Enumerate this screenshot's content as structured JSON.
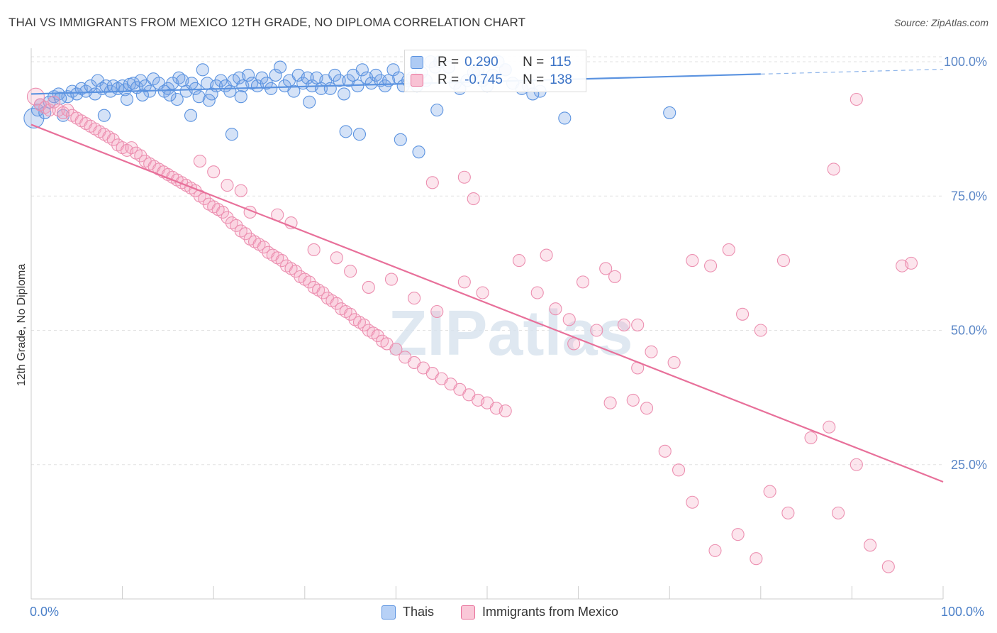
{
  "header": {
    "title": "THAI VS IMMIGRANTS FROM MEXICO 12TH GRADE, NO DIPLOMA CORRELATION CHART",
    "source": "Source: ZipAtlas.com"
  },
  "watermark": "ZIPatlas",
  "legend_top": {
    "rows": [
      {
        "r_label": "R =",
        "r_value": "0.290",
        "n_label": "N =",
        "n_value": "115",
        "color": "#8ab4f0"
      },
      {
        "r_label": "R =",
        "r_value": "-0.745",
        "n_label": "N =",
        "n_value": "138",
        "color": "#f5a8c4"
      }
    ]
  },
  "legend_bottom": [
    {
      "label": "Thais",
      "color": "#a8c8f5"
    },
    {
      "label": "Immigrants from Mexico",
      "color": "#f8bcd0"
    }
  ],
  "chart_data": {
    "type": "scatter",
    "title": "THAI VS IMMIGRANTS FROM MEXICO 12TH GRADE, NO DIPLOMA CORRELATION CHART",
    "xlabel": "",
    "ylabel": "12th Grade, No Diploma",
    "xlim": [
      0,
      100
    ],
    "ylim": [
      0,
      100
    ],
    "x_tick_labels": [
      "0.0%",
      "100.0%"
    ],
    "y_tick_labels": [
      "25.0%",
      "50.0%",
      "75.0%",
      "100.0%"
    ],
    "y_ticks": [
      25,
      50,
      75,
      100
    ],
    "grid": true,
    "legend_position": "top-center",
    "series": [
      {
        "name": "Thais",
        "color": "#5b93e0",
        "trend": {
          "x": [
            0,
            80
          ],
          "y": [
            94.0,
            97.7
          ],
          "dashed_to": [
            100,
            98.6
          ]
        },
        "points": [
          [
            0.3,
            89.5
          ],
          [
            0.7,
            91.0
          ],
          [
            1.0,
            92.0
          ],
          [
            1.5,
            90.5
          ],
          [
            2.0,
            92.5
          ],
          [
            2.5,
            93.5
          ],
          [
            3.0,
            94.0
          ],
          [
            3.5,
            90.0
          ],
          [
            4.0,
            93.5
          ],
          [
            4.5,
            94.5
          ],
          [
            5.0,
            94.0
          ],
          [
            5.5,
            95.0
          ],
          [
            6.0,
            94.5
          ],
          [
            6.5,
            95.5
          ],
          [
            7.0,
            94.0
          ],
          [
            7.3,
            96.5
          ],
          [
            7.8,
            95.0
          ],
          [
            8.2,
            95.5
          ],
          [
            8.7,
            94.5
          ],
          [
            9.0,
            95.5
          ],
          [
            9.5,
            95.0
          ],
          [
            10.0,
            95.5
          ],
          [
            10.3,
            94.8
          ],
          [
            10.8,
            95.8
          ],
          [
            11.2,
            96.0
          ],
          [
            11.6,
            95.2
          ],
          [
            12.0,
            96.5
          ],
          [
            12.5,
            95.5
          ],
          [
            13.0,
            94.5
          ],
          [
            13.4,
            96.8
          ],
          [
            14.0,
            96.0
          ],
          [
            14.6,
            94.5
          ],
          [
            15.0,
            95.0
          ],
          [
            15.5,
            96.0
          ],
          [
            16.2,
            97.0
          ],
          [
            16.6,
            96.5
          ],
          [
            17.0,
            94.5
          ],
          [
            17.6,
            96.0
          ],
          [
            18.0,
            95.0
          ],
          [
            18.4,
            93.5
          ],
          [
            18.8,
            98.5
          ],
          [
            19.3,
            96.0
          ],
          [
            19.8,
            94.0
          ],
          [
            20.3,
            95.5
          ],
          [
            20.8,
            96.5
          ],
          [
            21.3,
            95.5
          ],
          [
            21.8,
            94.5
          ],
          [
            22.2,
            96.5
          ],
          [
            22.8,
            97.0
          ],
          [
            23.2,
            95.5
          ],
          [
            23.8,
            97.5
          ],
          [
            24.2,
            96.0
          ],
          [
            24.8,
            95.5
          ],
          [
            25.3,
            97.0
          ],
          [
            25.8,
            96.0
          ],
          [
            26.3,
            95.0
          ],
          [
            26.8,
            97.5
          ],
          [
            27.3,
            99.0
          ],
          [
            27.8,
            95.5
          ],
          [
            28.3,
            96.5
          ],
          [
            28.8,
            94.5
          ],
          [
            29.3,
            97.5
          ],
          [
            29.8,
            96.0
          ],
          [
            30.3,
            97.0
          ],
          [
            30.8,
            95.5
          ],
          [
            31.3,
            97.0
          ],
          [
            31.8,
            95.0
          ],
          [
            32.3,
            96.5
          ],
          [
            32.8,
            95.0
          ],
          [
            33.3,
            97.5
          ],
          [
            33.8,
            96.5
          ],
          [
            34.3,
            94.0
          ],
          [
            34.8,
            96.5
          ],
          [
            35.3,
            97.5
          ],
          [
            35.8,
            95.5
          ],
          [
            36.3,
            98.5
          ],
          [
            36.8,
            97.0
          ],
          [
            37.3,
            96.0
          ],
          [
            37.8,
            97.5
          ],
          [
            38.3,
            96.5
          ],
          [
            38.8,
            95.5
          ],
          [
            39.2,
            96.5
          ],
          [
            39.7,
            98.5
          ],
          [
            40.3,
            97.0
          ],
          [
            40.8,
            95.5
          ],
          [
            41.3,
            96.5
          ],
          [
            41.8,
            97.0
          ],
          [
            42.3,
            95.5
          ],
          [
            42.8,
            98.0
          ],
          [
            43.3,
            96.5
          ],
          [
            43.8,
            100.0
          ],
          [
            44.3,
            99.0
          ],
          [
            44.8,
            100.0
          ],
          [
            45.8,
            99.0
          ],
          [
            46.5,
            96.0
          ],
          [
            47.0,
            95.0
          ],
          [
            47.8,
            96.5
          ],
          [
            48.5,
            98.0
          ],
          [
            49.0,
            98.5
          ],
          [
            49.5,
            96.5
          ],
          [
            50.0,
            95.5
          ],
          [
            50.6,
            97.5
          ],
          [
            51.2,
            100.0
          ],
          [
            52.0,
            98.5
          ],
          [
            52.8,
            96.0
          ],
          [
            53.8,
            95.0
          ],
          [
            54.5,
            95.5
          ],
          [
            55.8,
            94.5
          ],
          [
            17.5,
            90.0
          ],
          [
            16.0,
            93.0
          ],
          [
            22.0,
            86.5
          ],
          [
            34.5,
            87.0
          ],
          [
            40.5,
            85.5
          ],
          [
            44.5,
            91.0
          ],
          [
            52.0,
            98.5
          ]
        ],
        "extra_points": [
          [
            3.2,
            93.2
          ],
          [
            8.0,
            90.0
          ],
          [
            10.5,
            93.0
          ],
          [
            12.2,
            93.8
          ],
          [
            15.2,
            93.8
          ],
          [
            19.5,
            92.8
          ],
          [
            23.0,
            93.5
          ],
          [
            30.5,
            92.5
          ],
          [
            36.0,
            86.5
          ],
          [
            42.5,
            83.2
          ],
          [
            55.0,
            94.0
          ],
          [
            58.5,
            89.5
          ],
          [
            70.0,
            90.5
          ]
        ]
      },
      {
        "name": "Immigrants from Mexico",
        "color": "#e8709a",
        "trend": {
          "x": [
            0,
            100
          ],
          "y": [
            88.3,
            21.8
          ]
        },
        "points": [
          [
            0.5,
            93.5
          ],
          [
            1.0,
            92.0
          ],
          [
            1.5,
            91.5
          ],
          [
            2.0,
            91.0
          ],
          [
            2.5,
            92.5
          ],
          [
            3.0,
            91.0
          ],
          [
            3.5,
            90.5
          ],
          [
            4.0,
            91.0
          ],
          [
            4.5,
            90.0
          ],
          [
            5.0,
            89.5
          ],
          [
            5.5,
            89.0
          ],
          [
            6.0,
            88.5
          ],
          [
            6.5,
            88.0
          ],
          [
            7.0,
            87.5
          ],
          [
            7.5,
            87.0
          ],
          [
            8.0,
            86.5
          ],
          [
            8.5,
            86.0
          ],
          [
            9.0,
            85.5
          ],
          [
            9.5,
            84.5
          ],
          [
            10.0,
            84.0
          ],
          [
            10.5,
            83.5
          ],
          [
            11.0,
            84.0
          ],
          [
            11.5,
            83.0
          ],
          [
            12.0,
            82.5
          ],
          [
            12.5,
            81.5
          ],
          [
            13.0,
            81.0
          ],
          [
            13.5,
            80.5
          ],
          [
            14.0,
            80.0
          ],
          [
            14.5,
            79.5
          ],
          [
            15.0,
            79.0
          ],
          [
            15.5,
            78.5
          ],
          [
            16.0,
            78.0
          ],
          [
            16.5,
            77.5
          ],
          [
            17.0,
            77.0
          ],
          [
            17.5,
            76.5
          ],
          [
            18.0,
            76.0
          ],
          [
            18.5,
            75.0
          ],
          [
            19.0,
            74.5
          ],
          [
            19.5,
            73.5
          ],
          [
            20.0,
            73.0
          ],
          [
            20.5,
            72.5
          ],
          [
            21.0,
            72.0
          ],
          [
            21.5,
            71.0
          ],
          [
            22.0,
            70.0
          ],
          [
            22.5,
            69.5
          ],
          [
            23.0,
            68.5
          ],
          [
            23.5,
            68.0
          ],
          [
            24.0,
            67.0
          ],
          [
            24.5,
            66.5
          ],
          [
            25.0,
            66.0
          ],
          [
            25.5,
            65.5
          ],
          [
            26.0,
            64.5
          ],
          [
            26.5,
            64.0
          ],
          [
            27.0,
            63.5
          ],
          [
            27.5,
            63.0
          ],
          [
            28.0,
            62.0
          ],
          [
            28.5,
            61.5
          ],
          [
            29.0,
            61.0
          ],
          [
            29.5,
            60.0
          ],
          [
            30.0,
            59.5
          ],
          [
            30.5,
            59.0
          ],
          [
            31.0,
            58.0
          ],
          [
            31.5,
            57.5
          ],
          [
            32.0,
            57.0
          ],
          [
            32.5,
            56.0
          ],
          [
            33.0,
            55.5
          ],
          [
            33.5,
            55.0
          ],
          [
            34.0,
            54.0
          ],
          [
            34.5,
            53.5
          ],
          [
            35.0,
            53.0
          ],
          [
            35.5,
            52.0
          ],
          [
            36.0,
            51.5
          ],
          [
            36.5,
            51.0
          ],
          [
            37.0,
            50.0
          ],
          [
            37.5,
            49.5
          ],
          [
            38.0,
            49.0
          ],
          [
            38.5,
            48.0
          ],
          [
            39.0,
            47.5
          ],
          [
            40.0,
            46.5
          ],
          [
            41.0,
            45.0
          ],
          [
            42.0,
            44.0
          ],
          [
            43.0,
            43.0
          ],
          [
            44.0,
            42.0
          ],
          [
            45.0,
            41.0
          ],
          [
            46.0,
            40.0
          ],
          [
            47.0,
            39.0
          ],
          [
            48.0,
            38.0
          ],
          [
            49.0,
            37.0
          ],
          [
            50.0,
            36.5
          ],
          [
            51.0,
            35.5
          ],
          [
            52.0,
            35.0
          ],
          [
            18.5,
            81.5
          ],
          [
            20.0,
            79.5
          ],
          [
            21.5,
            77.0
          ],
          [
            23.0,
            76.0
          ],
          [
            24.0,
            72.0
          ],
          [
            27.0,
            71.5
          ],
          [
            28.5,
            70.0
          ],
          [
            31.0,
            65.0
          ],
          [
            33.5,
            63.5
          ],
          [
            35.0,
            61.0
          ],
          [
            37.0,
            58.0
          ],
          [
            39.5,
            59.5
          ],
          [
            42.0,
            56.0
          ],
          [
            44.5,
            53.5
          ],
          [
            47.5,
            59.0
          ],
          [
            49.5,
            57.0
          ],
          [
            53.5,
            63.0
          ],
          [
            55.5,
            57.0
          ],
          [
            57.5,
            54.0
          ],
          [
            59.0,
            52.0
          ],
          [
            60.5,
            59.0
          ],
          [
            63.0,
            61.5
          ],
          [
            64.0,
            60.0
          ],
          [
            65.0,
            51.0
          ],
          [
            66.5,
            51.0
          ],
          [
            68.0,
            46.0
          ],
          [
            70.5,
            44.0
          ],
          [
            72.5,
            63.0
          ],
          [
            74.5,
            62.0
          ],
          [
            76.5,
            65.0
          ],
          [
            78.0,
            53.0
          ],
          [
            80.0,
            50.0
          ],
          [
            82.5,
            63.0
          ],
          [
            85.5,
            30.0
          ],
          [
            87.5,
            32.0
          ],
          [
            88.5,
            16.0
          ],
          [
            90.5,
            25.0
          ],
          [
            92.0,
            10.0
          ],
          [
            94.0,
            6.0
          ],
          [
            95.5,
            62.0
          ],
          [
            96.5,
            62.5
          ],
          [
            44.0,
            77.5
          ],
          [
            47.5,
            78.5
          ],
          [
            48.5,
            74.5
          ],
          [
            56.5,
            64.0
          ],
          [
            59.5,
            47.5
          ],
          [
            62.0,
            50.0
          ],
          [
            63.5,
            36.5
          ],
          [
            66.0,
            37.0
          ],
          [
            66.5,
            43.0
          ],
          [
            67.5,
            35.5
          ],
          [
            69.5,
            27.5
          ],
          [
            71.0,
            24.0
          ],
          [
            72.5,
            18.0
          ],
          [
            75.0,
            9.0
          ],
          [
            77.5,
            12.0
          ],
          [
            79.5,
            7.5
          ],
          [
            81.0,
            20.0
          ],
          [
            83.0,
            16.0
          ],
          [
            88.0,
            80.0
          ],
          [
            90.5,
            93.0
          ]
        ]
      }
    ]
  }
}
